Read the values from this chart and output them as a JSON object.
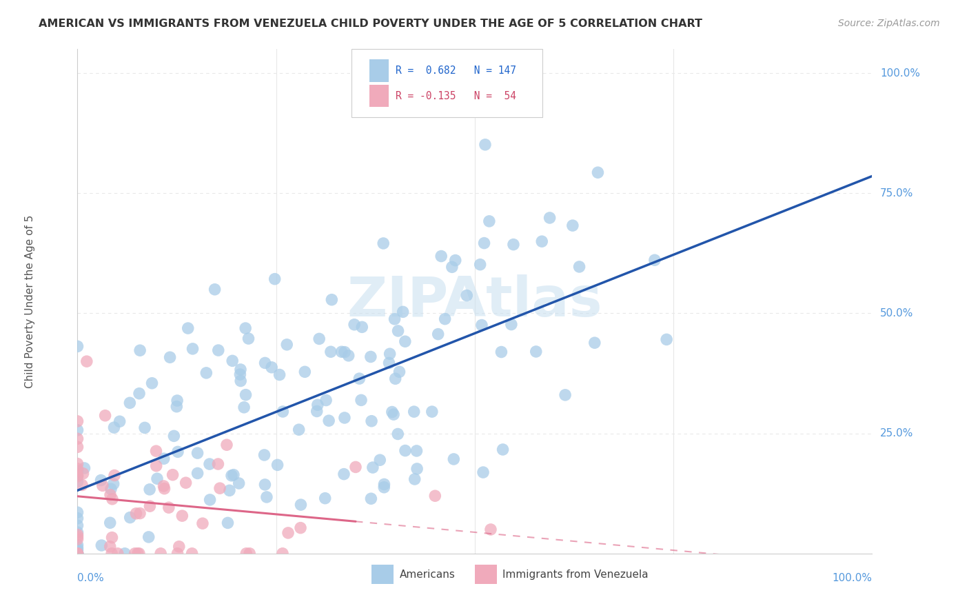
{
  "title": "AMERICAN VS IMMIGRANTS FROM VENEZUELA CHILD POVERTY UNDER THE AGE OF 5 CORRELATION CHART",
  "source": "Source: ZipAtlas.com",
  "ylabel": "Child Poverty Under the Age of 5",
  "R_american": 0.682,
  "N_american": 147,
  "R_venezuela": -0.135,
  "N_venezuela": 54,
  "blue_color": "#A8CCE8",
  "pink_color": "#F0AABB",
  "blue_line_color": "#2255AA",
  "pink_line_color": "#DD6688",
  "legend_text_color_blue": "#2266CC",
  "legend_text_color_pink": "#CC4466",
  "watermark_color": "#C8DFF0",
  "background_color": "#FFFFFF",
  "grid_color": "#E8E8E8",
  "axis_color": "#CCCCCC",
  "title_color": "#333333",
  "source_color": "#999999",
  "tick_color": "#5599DD"
}
